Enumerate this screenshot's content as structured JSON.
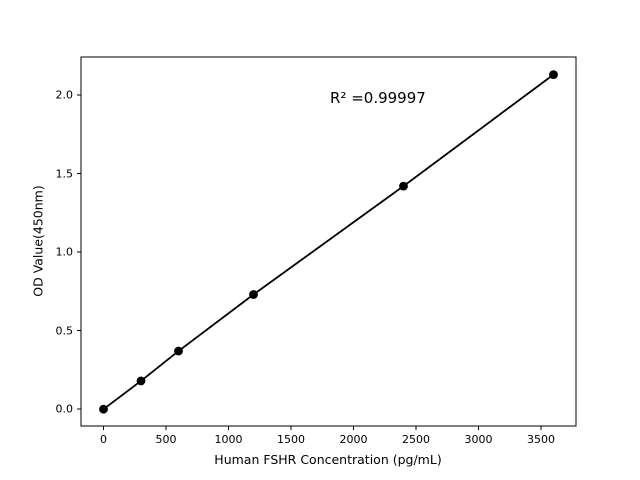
{
  "figure": {
    "background_color": "#ffffff",
    "text_color": "#000000"
  },
  "chart_data": {
    "type": "line",
    "marker": "circle",
    "x": [
      0,
      300,
      600,
      1200,
      2400,
      3600
    ],
    "y": [
      0.0,
      0.18,
      0.37,
      0.73,
      1.42,
      2.13
    ],
    "title": "",
    "xlabel": "Human FSHR Concentration (pg/mL)",
    "ylabel": "OD Value(450nm)",
    "annotation_text": "R² =0.99997",
    "xlim": [
      -180,
      3780
    ],
    "ylim": [
      -0.107,
      2.242
    ],
    "x_ticks": [
      0,
      500,
      1000,
      1500,
      2000,
      2500,
      3000,
      3500
    ],
    "x_tick_labels": [
      "0",
      "500",
      "1000",
      "1500",
      "2000",
      "2500",
      "3000",
      "3500"
    ],
    "y_ticks": [
      0.0,
      0.5,
      1.0,
      1.5,
      2.0
    ],
    "y_tick_labels": [
      "0.0",
      "0.5",
      "1.0",
      "1.5",
      "2.0"
    ],
    "grid": false,
    "legend": "none",
    "line_color": "#000000",
    "marker_color": "#000000",
    "axis_color": "#000000"
  }
}
